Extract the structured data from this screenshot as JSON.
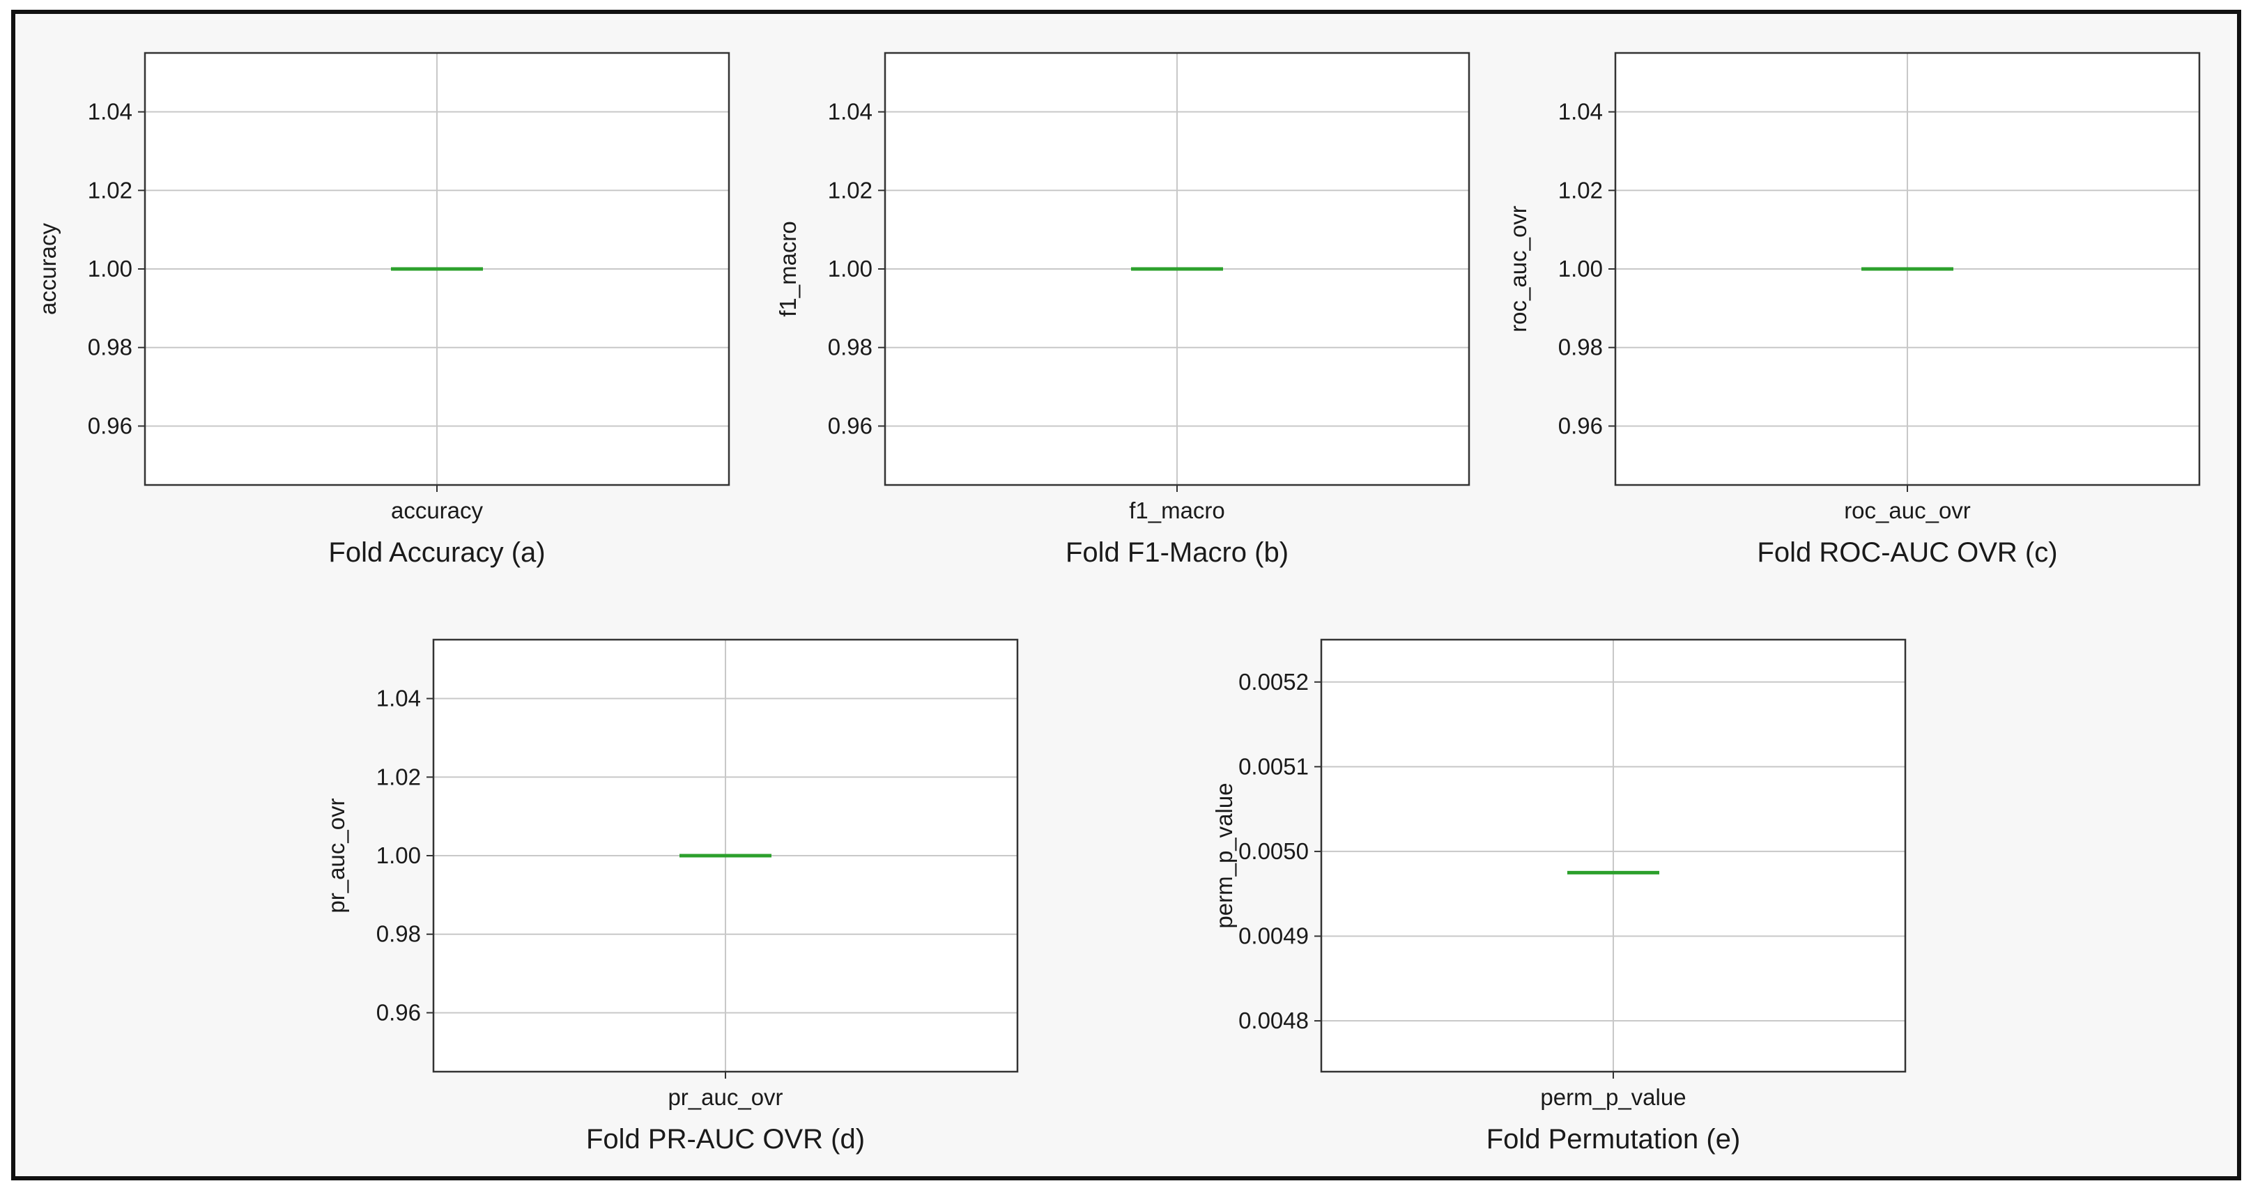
{
  "chart_data": [
    {
      "type": "box",
      "ylabel": "accuracy",
      "categories": [
        "accuracy"
      ],
      "caption": "Fold Accuracy (a)",
      "ylim": [
        0.945,
        1.055
      ],
      "yticks": [
        0.96,
        0.98,
        1.0,
        1.02,
        1.04
      ],
      "ytick_labels": [
        "0.96",
        "0.98",
        "1.00",
        "1.02",
        "1.04"
      ],
      "series": [
        {
          "values": [
            1.0,
            1.0,
            1.0,
            1.0,
            1.0
          ],
          "median": 1.0
        }
      ],
      "grid": true,
      "median_color": "#2ca02c"
    },
    {
      "type": "box",
      "ylabel": "f1_macro",
      "categories": [
        "f1_macro"
      ],
      "caption": "Fold F1-Macro (b)",
      "ylim": [
        0.945,
        1.055
      ],
      "yticks": [
        0.96,
        0.98,
        1.0,
        1.02,
        1.04
      ],
      "ytick_labels": [
        "0.96",
        "0.98",
        "1.00",
        "1.02",
        "1.04"
      ],
      "series": [
        {
          "values": [
            1.0,
            1.0,
            1.0,
            1.0,
            1.0
          ],
          "median": 1.0
        }
      ],
      "grid": true,
      "median_color": "#2ca02c"
    },
    {
      "type": "box",
      "ylabel": "roc_auc_ovr",
      "categories": [
        "roc_auc_ovr"
      ],
      "caption": "Fold ROC-AUC OVR (c)",
      "ylim": [
        0.945,
        1.055
      ],
      "yticks": [
        0.96,
        0.98,
        1.0,
        1.02,
        1.04
      ],
      "ytick_labels": [
        "0.96",
        "0.98",
        "1.00",
        "1.02",
        "1.04"
      ],
      "series": [
        {
          "values": [
            1.0,
            1.0,
            1.0,
            1.0,
            1.0
          ],
          "median": 1.0
        }
      ],
      "grid": true,
      "median_color": "#2ca02c"
    },
    {
      "type": "box",
      "ylabel": "pr_auc_ovr",
      "categories": [
        "pr_auc_ovr"
      ],
      "caption": "Fold PR-AUC OVR (d)",
      "ylim": [
        0.945,
        1.055
      ],
      "yticks": [
        0.96,
        0.98,
        1.0,
        1.02,
        1.04
      ],
      "ytick_labels": [
        "0.96",
        "0.98",
        "1.00",
        "1.02",
        "1.04"
      ],
      "series": [
        {
          "values": [
            1.0,
            1.0,
            1.0,
            1.0,
            1.0
          ],
          "median": 1.0
        }
      ],
      "grid": true,
      "median_color": "#2ca02c"
    },
    {
      "type": "box",
      "ylabel": "perm_p_value",
      "categories": [
        "perm_p_value"
      ],
      "caption": "Fold Permutation (e)",
      "ylim": [
        0.00474,
        0.00525
      ],
      "yticks": [
        0.0048,
        0.0049,
        0.005,
        0.0051,
        0.0052
      ],
      "ytick_labels": [
        "0.0048",
        "0.0049",
        "0.0050",
        "0.0051",
        "0.0052"
      ],
      "series": [
        {
          "values": [
            0.004975,
            0.004975,
            0.004975,
            0.004975,
            0.004975
          ],
          "median": 0.004975
        }
      ],
      "grid": true,
      "median_color": "#2ca02c"
    }
  ]
}
